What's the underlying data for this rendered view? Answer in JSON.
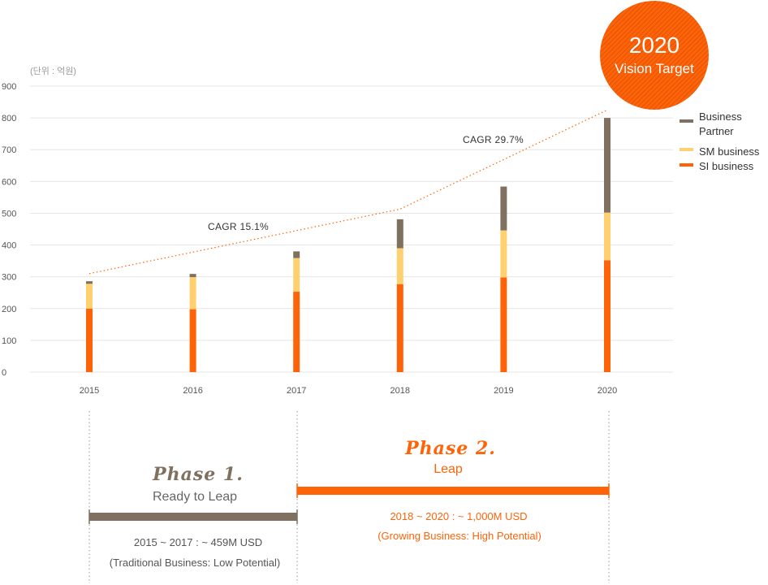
{
  "chart_data": {
    "type": "bar",
    "stacked": true,
    "unit_note": "(단위 : 억원)",
    "categories": [
      "2015",
      "2016",
      "2017",
      "2018",
      "2019",
      "2020"
    ],
    "series": [
      {
        "name": "SI business",
        "color": "#ff6308",
        "values": [
          200,
          198,
          253,
          277,
          298,
          352
        ]
      },
      {
        "name": "SM business",
        "color": "#ffd070",
        "values": [
          78,
          101,
          106,
          113,
          148,
          150
        ]
      },
      {
        "name": "Business Partner",
        "color": "#7f7060",
        "values": [
          8,
          10,
          21,
          91,
          138,
          298
        ]
      }
    ],
    "ylim": [
      0,
      900
    ],
    "yticks": [
      0,
      100,
      200,
      300,
      400,
      500,
      600,
      700,
      800,
      900
    ],
    "grid": true,
    "legend_position": "right",
    "trend_line": {
      "style": "dotted",
      "color": "#ff6308",
      "values": [
        310,
        513,
        825
      ],
      "at": [
        "2015",
        "2018",
        "2020"
      ]
    },
    "annotations": [
      {
        "label": "CAGR 15.1%"
      },
      {
        "label": "CAGR 29.7%"
      }
    ]
  },
  "badge": {
    "year": "2020",
    "label": "Vision Target",
    "color": "#ff6308"
  },
  "phases": [
    {
      "title": "Phase 1.",
      "subtitle": "Ready to Leap",
      "summary": "2015 ~ 2017 : ~ 459M USD",
      "note": "(Traditional Business: Low Potential)",
      "color": "#7f7060"
    },
    {
      "title": "Phase 2.",
      "subtitle": "Leap",
      "summary": "2018 ~ 2020 : ~ 1,000M USD",
      "note": "(Growing Business: High Potential)",
      "color": "#ff6308"
    }
  ]
}
